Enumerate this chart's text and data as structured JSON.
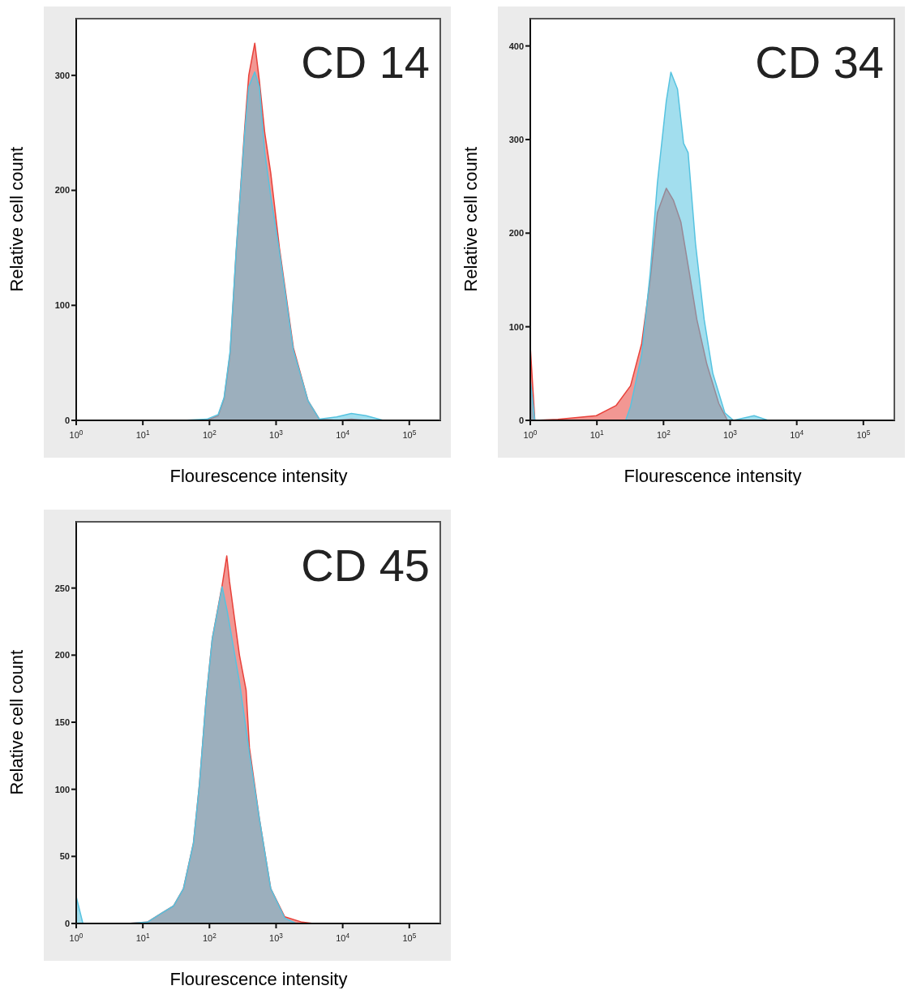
{
  "chart_data": [
    {
      "type": "area",
      "title": "CD 14",
      "xlabel": "Flourescence intensity",
      "ylabel": "Relative cell count",
      "log": "x",
      "xlim": [
        1,
        300000
      ],
      "ylim": [
        0,
        350
      ],
      "xticks": [
        {
          "value": 1,
          "label": "10$^{0}$"
        },
        {
          "value": 10,
          "label": "10$^{1}$"
        },
        {
          "value": 100,
          "label": "10$^{2}$"
        },
        {
          "value": 1000,
          "label": "10$^{3}$"
        },
        {
          "value": 10000,
          "label": "10$^{4}$"
        },
        {
          "value": 100000,
          "label": "10$^{5}$"
        }
      ],
      "yticks": [
        0,
        100,
        200,
        300
      ],
      "series": [
        {
          "color": "#e8413a",
          "x": [
            40,
            91,
            135,
            166,
            204,
            251,
            339,
            389,
            479,
            562,
            676,
            832,
            1122,
            1820,
            3020,
            4470,
            8130,
            13500,
            22400,
            40700,
            100000
          ],
          "values": [
            0,
            0,
            4,
            19,
            58,
            145,
            255,
            300,
            328,
            295,
            250,
            215,
            150,
            63,
            17,
            1,
            0,
            1,
            0,
            0,
            0
          ]
        },
        {
          "color": "#56c3e0",
          "x": [
            40,
            91,
            135,
            166,
            204,
            251,
            339,
            389,
            479,
            562,
            676,
            832,
            1122,
            1820,
            3020,
            4470,
            8130,
            13500,
            22400,
            40700,
            100000
          ],
          "values": [
            0,
            1,
            5,
            20,
            60,
            147,
            251,
            290,
            303,
            290,
            233,
            195,
            147,
            61,
            17,
            1,
            3,
            6,
            4,
            0,
            0
          ]
        }
      ]
    },
    {
      "type": "area",
      "title": "CD 34",
      "xlabel": "Flourescence intensity",
      "ylabel": "Relative cell count",
      "log": "x",
      "xlim": [
        1,
        300000
      ],
      "ylim": [
        0,
        430
      ],
      "xticks": [
        {
          "value": 1,
          "label": "10$^{0}$"
        },
        {
          "value": 10,
          "label": "10$^{1}$"
        },
        {
          "value": 100,
          "label": "10$^{2}$"
        },
        {
          "value": 1000,
          "label": "10$^{3}$"
        },
        {
          "value": 10000,
          "label": "10$^{4}$"
        },
        {
          "value": 100000,
          "label": "10$^{5}$"
        }
      ],
      "yticks": [
        0,
        100,
        200,
        300,
        400
      ],
      "series": [
        {
          "color": "#e8413a",
          "x": [
            1,
            1.17,
            2.6,
            9.8,
            19.5,
            32,
            47,
            63,
            81,
            110,
            141,
            182,
            245,
            316,
            447,
            676,
            912,
            100000
          ],
          "values": [
            79,
            0,
            1,
            5,
            16,
            37,
            82,
            150,
            222,
            248,
            235,
            212,
            157,
            108,
            60,
            18,
            0,
            0
          ]
        },
        {
          "color": "#56c3e0",
          "x": [
            1,
            1.17,
            27,
            32,
            47,
            63,
            81,
            110,
            129,
            162,
            200,
            234,
            302,
            407,
            550,
            832,
            1122,
            2290,
            3720,
            100000
          ],
          "values": [
            44,
            0,
            0,
            15,
            70,
            157,
            254,
            341,
            372,
            354,
            296,
            286,
            189,
            108,
            50,
            8,
            0,
            5,
            0,
            0
          ]
        }
      ]
    },
    {
      "type": "area",
      "title": "CD 45",
      "xlabel": "Flourescence intensity",
      "ylabel": "Relative cell count",
      "log": "x",
      "xlim": [
        1,
        300000
      ],
      "ylim": [
        0,
        300
      ],
      "xticks": [
        {
          "value": 1,
          "label": "10$^{0}$"
        },
        {
          "value": 10,
          "label": "10$^{1}$"
        },
        {
          "value": 100,
          "label": "10$^{2}$"
        },
        {
          "value": 1000,
          "label": "10$^{3}$"
        },
        {
          "value": 10000,
          "label": "10$^{4}$"
        },
        {
          "value": 100000,
          "label": "10$^{5}$"
        }
      ],
      "yticks": [
        0,
        50,
        100,
        150,
        200,
        250
      ],
      "series": [
        {
          "color": "#e8413a",
          "x": [
            1,
            5.9,
            11.7,
            19.5,
            28.8,
            40.7,
            57.5,
            70.8,
            89,
            110,
            155,
            182,
            200,
            282,
            355,
            398,
            562,
            832,
            1349,
            2455,
            3630,
            100000
          ],
          "values": [
            0,
            0,
            1,
            8,
            13,
            26,
            60,
            104,
            167,
            212,
            252,
            274,
            255,
            200,
            174,
            131,
            78,
            26,
            5,
            1,
            0,
            0
          ]
        },
        {
          "color": "#56c3e0",
          "x": [
            1,
            1.26,
            5.9,
            11.7,
            19.5,
            28.8,
            40.7,
            57.5,
            70.8,
            89,
            110,
            155,
            186,
            282,
            398,
            562,
            832,
            1349,
            2000,
            100000
          ],
          "values": [
            20,
            0,
            0,
            1,
            8,
            13,
            26,
            60,
            104,
            167,
            212,
            251,
            232,
            180,
            127,
            78,
            26,
            4,
            0,
            0
          ]
        }
      ]
    }
  ]
}
